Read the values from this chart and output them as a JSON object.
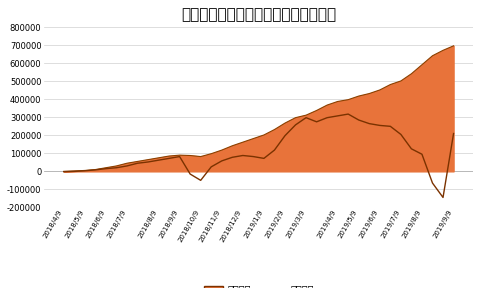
{
  "title": "トラリピの累計利益と実現損益の推移",
  "title_fontsize": 11,
  "background_color": "#ffffff",
  "fill_color": "#E8733A",
  "fill_edge_color": "#8B4000",
  "line_color": "#7B3200",
  "ylim": [
    -200000,
    800000
  ],
  "yticks": [
    -200000,
    -100000,
    0,
    100000,
    200000,
    300000,
    400000,
    500000,
    600000,
    700000,
    800000
  ],
  "legend_labels": [
    "累計利益",
    "実現損益"
  ],
  "dates": [
    "2018/4/9",
    "2018/4/23",
    "2018/5/7",
    "2018/5/21",
    "2018/6/4",
    "2018/6/18",
    "2018/7/2",
    "2018/7/16",
    "2018/7/30",
    "2018/8/13",
    "2018/8/27",
    "2018/9/10",
    "2018/9/24",
    "2018/10/8",
    "2018/10/22",
    "2018/11/5",
    "2018/11/19",
    "2018/12/3",
    "2018/12/17",
    "2019/1/7",
    "2019/1/21",
    "2019/2/4",
    "2019/2/18",
    "2019/3/4",
    "2019/3/18",
    "2019/4/1",
    "2019/4/15",
    "2019/4/29",
    "2019/5/13",
    "2019/5/27",
    "2019/6/10",
    "2019/6/24",
    "2019/7/8",
    "2019/7/22",
    "2019/8/5",
    "2019/8/19",
    "2019/9/2",
    "2019/9/9"
  ],
  "cumulative_profit": [
    0,
    2000,
    5000,
    10000,
    20000,
    30000,
    45000,
    55000,
    65000,
    75000,
    85000,
    90000,
    88000,
    82000,
    98000,
    118000,
    142000,
    162000,
    182000,
    202000,
    232000,
    268000,
    298000,
    312000,
    338000,
    368000,
    388000,
    398000,
    418000,
    432000,
    452000,
    482000,
    502000,
    542000,
    592000,
    642000,
    672000,
    697000
  ],
  "unrealized_profit": [
    -2000,
    0,
    3000,
    8000,
    15000,
    20000,
    30000,
    45000,
    52000,
    62000,
    72000,
    82000,
    -15000,
    -50000,
    25000,
    58000,
    78000,
    88000,
    82000,
    72000,
    118000,
    198000,
    258000,
    298000,
    275000,
    298000,
    308000,
    318000,
    285000,
    265000,
    255000,
    250000,
    205000,
    125000,
    95000,
    -65000,
    -145000,
    210000
  ],
  "xtick_labels": [
    "2018/4/9",
    "2018/5/9",
    "2018/6/9",
    "2018/7/9",
    "2018/8/9",
    "2018/9/9",
    "2018/10/9",
    "2018/11/9",
    "2018/12/9",
    "2019/1/9",
    "2019/2/9",
    "2019/3/9",
    "2019/4/9",
    "2019/5/9",
    "2019/6/9",
    "2019/7/9",
    "2019/8/9",
    "2019/9/9"
  ]
}
